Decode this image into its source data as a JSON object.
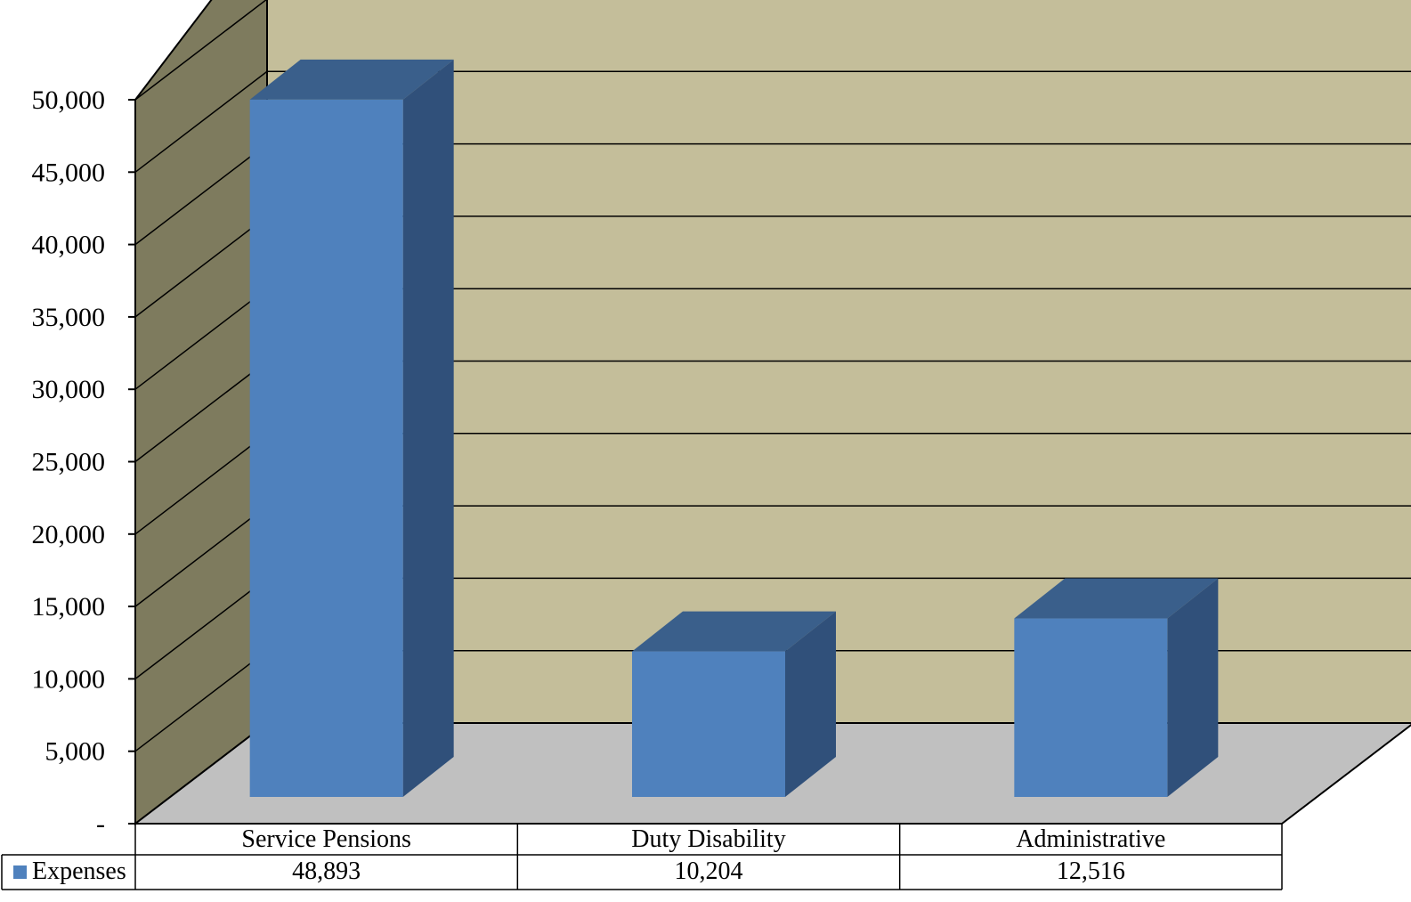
{
  "chart_data": {
    "type": "bar",
    "title": "",
    "xlabel": "",
    "ylabel": "",
    "categories": [
      "Service Pensions",
      "Duty Disability",
      "Administrative"
    ],
    "series": [
      {
        "name": "Expenses",
        "values": [
          48893,
          10204,
          12516
        ],
        "value_labels": [
          "48,893",
          "10,204",
          "12,516"
        ],
        "color": "#4f81bd"
      }
    ],
    "ylim": [
      0,
      50000
    ],
    "y_ticks": [
      0,
      5000,
      10000,
      15000,
      20000,
      25000,
      30000,
      35000,
      40000,
      45000,
      50000
    ],
    "y_tick_labels": [
      "-",
      "5,000",
      "10,000",
      "15,000",
      "20,000",
      "25,000",
      "30,000",
      "35,000",
      "40,000",
      "45,000",
      "50,000"
    ],
    "grid": true,
    "legend": "data-table-left",
    "style": "3d",
    "colors": {
      "back_wall": "#c4be9a",
      "side_wall": "#7e7b5e",
      "floor": "#c0c0c0",
      "bar_front": "#4f81bd",
      "bar_top": "#3a5f8b",
      "bar_side": "#30507a"
    }
  }
}
